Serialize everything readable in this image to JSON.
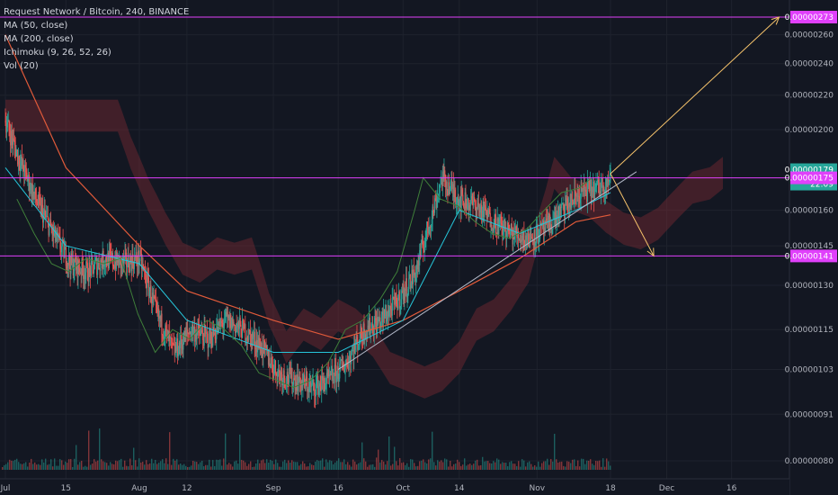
{
  "legend": {
    "symbol": "Request Network / Bitcoin, 240, BINANCE",
    "indicators": [
      "MA (50, close)",
      "MA (200, close)",
      "Ichimoku (9, 26, 52, 26)",
      "Vol (20)"
    ]
  },
  "colors": {
    "background": "#131722",
    "grid": "#1e222d",
    "candle_up": "#26a69a",
    "candle_down": "#ef5350",
    "ma50": "#26c6da",
    "ma200": "#e05a3a",
    "cloud": "#7a2a33",
    "lagging_span": "#3f7f3a",
    "magenta": "#e040fb",
    "trendline": "#b2b8c8",
    "arrow": "#f5c26b"
  },
  "chart_data": {
    "type": "candlestick",
    "x_labels": [
      "Jul",
      "15",
      "Aug",
      "12",
      "Sep",
      "16",
      "Oct",
      "14",
      "Nov",
      "18",
      "Dec",
      "16"
    ],
    "y_ticks": [
      "0.00000260",
      "0.00000240",
      "0.00000220",
      "0.00000200",
      "0.00000160",
      "0.00000145",
      "0.00000130",
      "0.00000115",
      "0.00000103",
      "0.00000091",
      "0.00000080"
    ],
    "y_scale": "log",
    "price_series": [
      [
        "Jul 1",
        2.05e-06
      ],
      [
        "Jul 4",
        1.85e-06
      ],
      [
        "Jul 8",
        1.65e-06
      ],
      [
        "Jul 12",
        1.5e-06
      ],
      [
        "Jul 16",
        1.38e-06
      ],
      [
        "Jul 20",
        1.35e-06
      ],
      [
        "Jul 24",
        1.4e-06
      ],
      [
        "Jul 28",
        1.38e-06
      ],
      [
        "Aug 1",
        1.4e-06
      ],
      [
        "Aug 5",
        1.2e-06
      ],
      [
        "Aug 9",
        1.08e-06
      ],
      [
        "Aug 13",
        1.15e-06
      ],
      [
        "Aug 17",
        1.12e-06
      ],
      [
        "Aug 21",
        1.18e-06
      ],
      [
        "Aug 25",
        1.15e-06
      ],
      [
        "Aug 29",
        1.1e-06
      ],
      [
        "Sep 2",
        1.02e-06
      ],
      [
        "Sep 6",
        1e-06
      ],
      [
        "Sep 10",
        9.8e-07
      ],
      [
        "Sep 14",
        1e-06
      ],
      [
        "Sep 18",
        1.05e-06
      ],
      [
        "Sep 22",
        1.15e-06
      ],
      [
        "Sep 26",
        1.18e-06
      ],
      [
        "Sep 30",
        1.25e-06
      ],
      [
        "Oct 4",
        1.35e-06
      ],
      [
        "Oct 8",
        1.6e-06
      ],
      [
        "Oct 10",
        1.75e-06
      ],
      [
        "Oct 14",
        1.65e-06
      ],
      [
        "Oct 18",
        1.62e-06
      ],
      [
        "Oct 22",
        1.55e-06
      ],
      [
        "Oct 26",
        1.5e-06
      ],
      [
        "Oct 30",
        1.48e-06
      ],
      [
        "Nov 3",
        1.52e-06
      ],
      [
        "Nov 7",
        1.6e-06
      ],
      [
        "Nov 11",
        1.68e-06
      ],
      [
        "Nov 15",
        1.7e-06
      ],
      [
        "Nov 18",
        1.75e-06
      ]
    ],
    "ma50_series": [
      [
        "Jul 1",
        1.8e-06
      ],
      [
        "Jul 15",
        1.45e-06
      ],
      [
        "Aug 1",
        1.38e-06
      ],
      [
        "Aug 12",
        1.18e-06
      ],
      [
        "Sep 1",
        1.08e-06
      ],
      [
        "Sep 16",
        1.08e-06
      ],
      [
        "Oct 1",
        1.18e-06
      ],
      [
        "Oct 14",
        1.6e-06
      ],
      [
        "Oct 28",
        1.5e-06
      ],
      [
        "Nov 10",
        1.6e-06
      ],
      [
        "Nov 18",
        1.68e-06
      ]
    ],
    "ma200_series": [
      [
        "Jul 1",
        2.6e-06
      ],
      [
        "Jul 15",
        1.8e-06
      ],
      [
        "Aug 1",
        1.45e-06
      ],
      [
        "Aug 12",
        1.28e-06
      ],
      [
        "Sep 1",
        1.18e-06
      ],
      [
        "Sep 16",
        1.12e-06
      ],
      [
        "Oct 1",
        1.18e-06
      ],
      [
        "Oct 14",
        1.28e-06
      ],
      [
        "Oct 28",
        1.4e-06
      ],
      [
        "Nov 10",
        1.55e-06
      ],
      [
        "Nov 18",
        1.58e-06
      ]
    ],
    "horizontal_levels": [
      {
        "value": 2.73e-06,
        "label": "0.00000273",
        "color": "#e040fb"
      },
      {
        "value": 1.75e-06,
        "label": "0.00000175",
        "color": "#e040fb"
      },
      {
        "value": 1.41e-06,
        "label": "0.00000141",
        "color": "#e040fb"
      }
    ],
    "price_tags": [
      {
        "value": 1.79e-06,
        "label": "0.00000179",
        "color": "#26a69a"
      },
      {
        "value": 1.72e-06,
        "label": "22:09",
        "color": "#26a69a"
      }
    ],
    "trendline": [
      [
        "Sep 16",
        1.03e-06
      ],
      [
        "Nov 24",
        1.78e-06
      ]
    ],
    "projection_arrows": [
      {
        "from": [
          "Nov 18",
          1.77e-06
        ],
        "to": [
          "Dec 27",
          2.73e-06
        ]
      },
      {
        "from": [
          "Nov 18",
          1.77e-06
        ],
        "to": [
          "Nov 28",
          1.41e-06
        ]
      }
    ]
  }
}
